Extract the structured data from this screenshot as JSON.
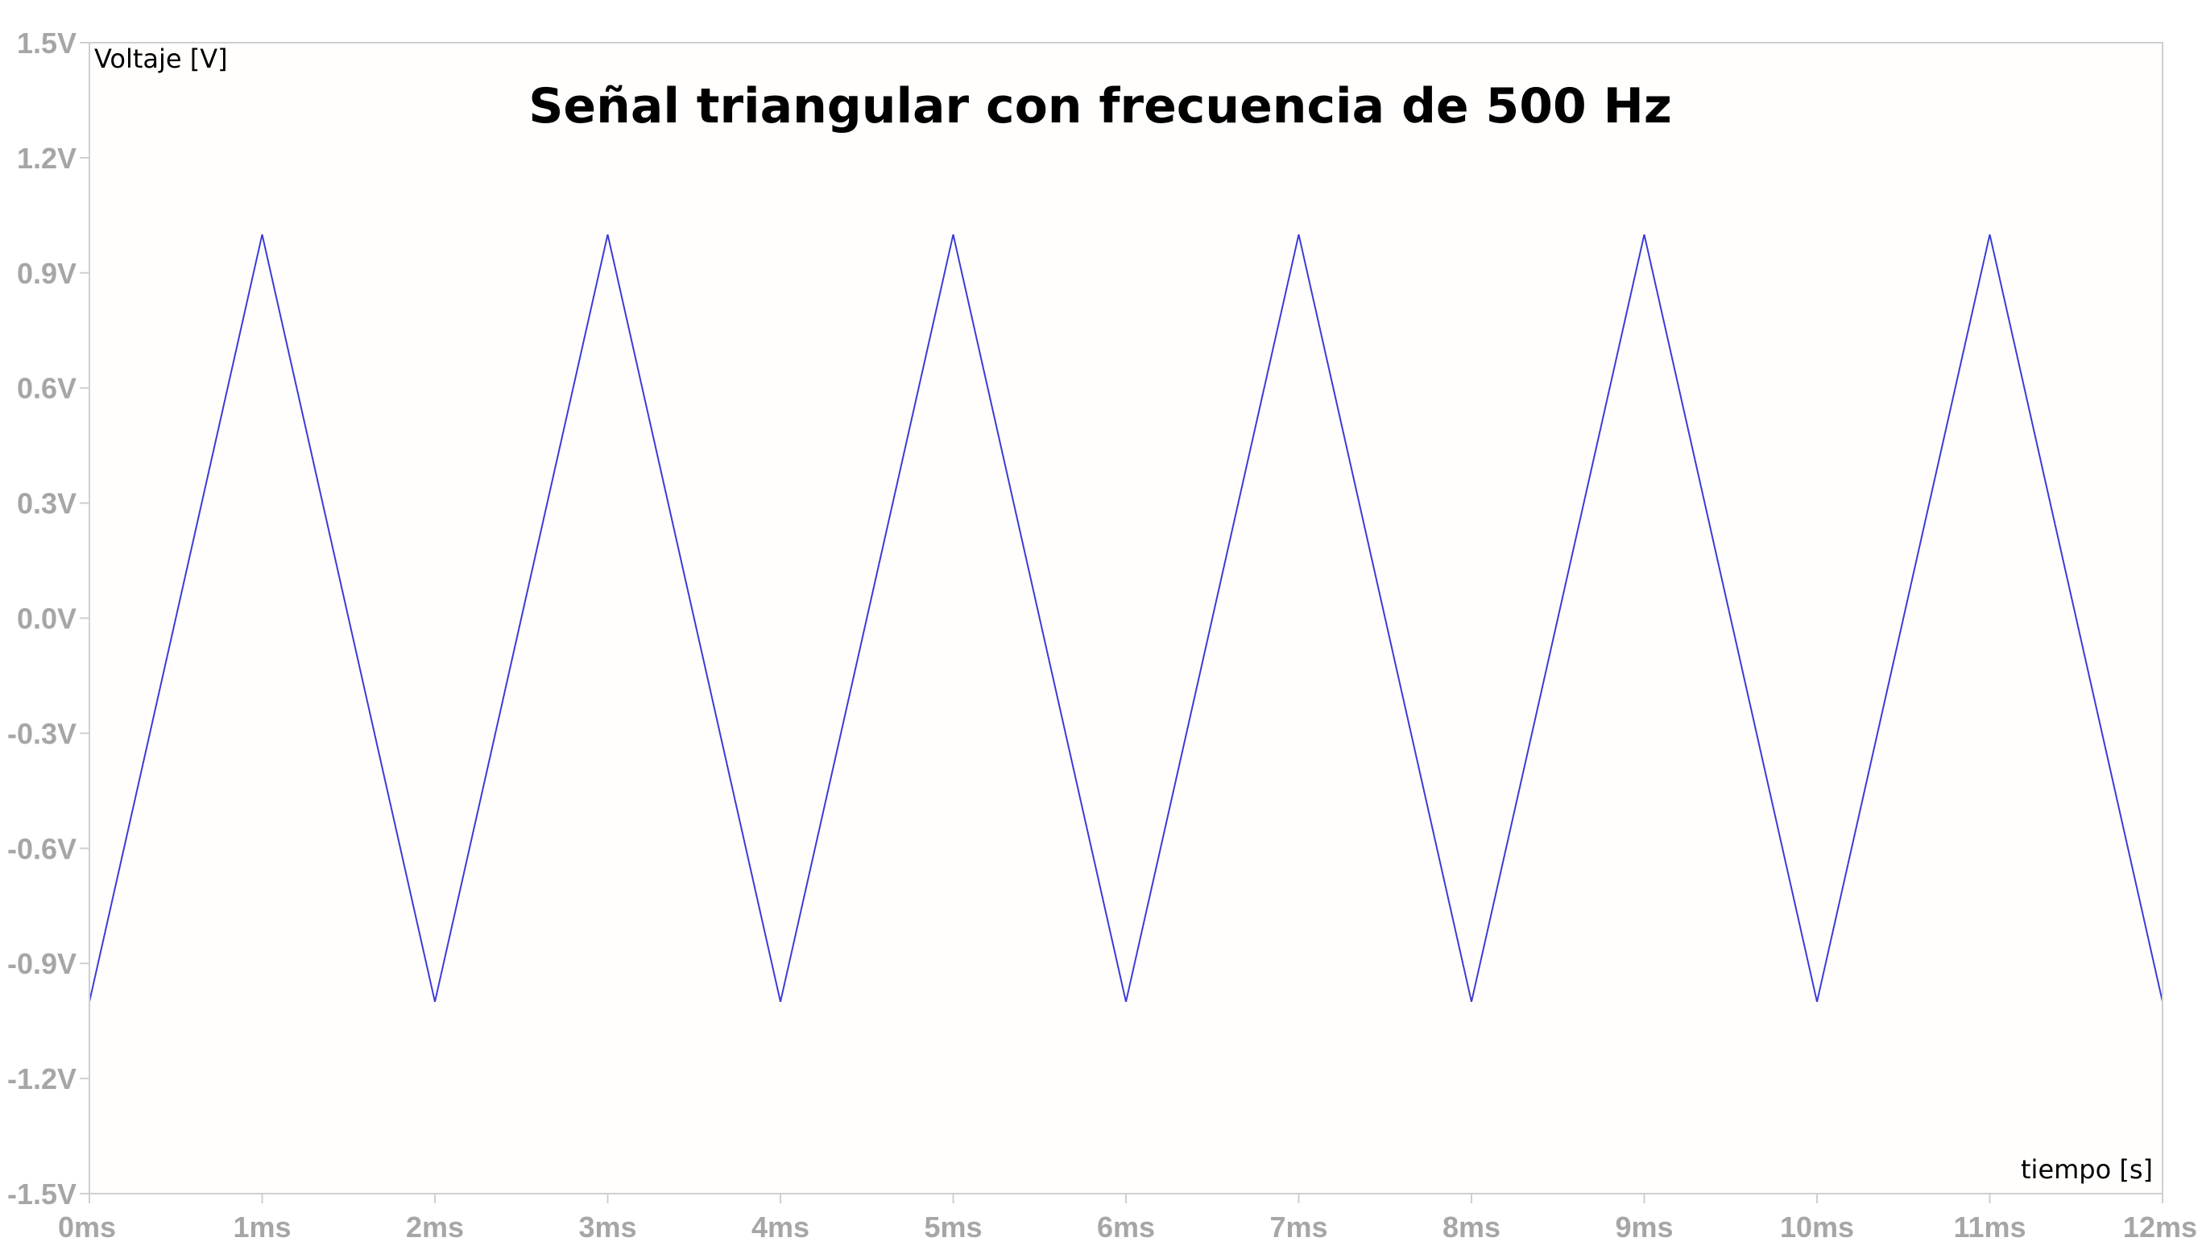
{
  "chart_data": {
    "type": "line",
    "title": "Señal triangular con frecuencia de 500 Hz",
    "xlabel": "tiempo [s]",
    "ylabel": "Voltaje [V]",
    "xlim": [
      0,
      12
    ],
    "ylim": [
      -1.5,
      1.5
    ],
    "x_ticks": [
      0,
      1,
      2,
      3,
      4,
      5,
      6,
      7,
      8,
      9,
      10,
      11,
      12
    ],
    "x_tick_labels": [
      "0ms",
      "1ms",
      "2ms",
      "3ms",
      "4ms",
      "5ms",
      "6ms",
      "7ms",
      "8ms",
      "9ms",
      "10ms",
      "11ms",
      "12ms"
    ],
    "y_ticks": [
      1.5,
      1.2,
      0.9,
      0.6,
      0.3,
      0.0,
      -0.3,
      -0.6,
      -0.9,
      -1.2,
      -1.5
    ],
    "y_tick_labels": [
      "1.5V",
      "1.2V",
      "0.9V",
      "0.6V",
      "0.3V",
      "0.0V",
      "-0.3V",
      "-0.6V",
      "-0.9V",
      "-1.2V",
      "-1.5V"
    ],
    "grid": false,
    "series": [
      {
        "color": "#3b3bd9",
        "x": [
          0,
          1,
          2,
          3,
          4,
          5,
          6,
          7,
          8,
          9,
          10,
          11,
          12
        ],
        "y": [
          -1,
          1,
          -1,
          1,
          -1,
          1,
          -1,
          1,
          -1,
          1,
          -1,
          1,
          -1
        ]
      }
    ],
    "colors": {
      "background": "#ffffff",
      "plot_background": "#fffefc",
      "frame": "#cfcfcf",
      "tick_label": "#a6a6a6",
      "text": "#000000"
    }
  }
}
